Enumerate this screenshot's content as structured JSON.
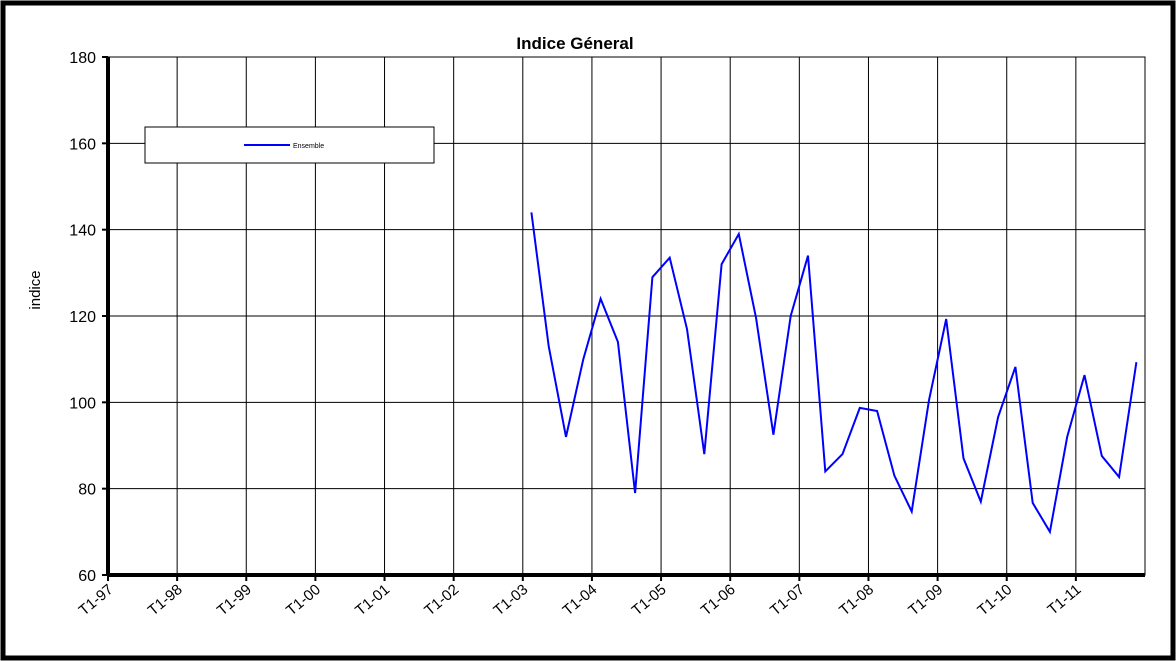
{
  "chart_data": {
    "type": "line",
    "title": "Indice Géneral",
    "y_label": "indice",
    "categories": [
      "T1-97",
      null,
      null,
      null,
      "T1-98",
      null,
      null,
      null,
      "T1-99",
      null,
      null,
      null,
      "T1-00",
      null,
      null,
      null,
      "T1-01",
      null,
      null,
      null,
      "T1-02",
      null,
      null,
      null,
      "T1-03",
      null,
      null,
      null,
      "T1-04",
      null,
      null,
      null,
      "T1-05",
      null,
      null,
      null,
      "T1-06",
      null,
      null,
      null,
      "T1-07",
      null,
      null,
      null,
      "T1-08",
      null,
      null,
      null,
      "T1-09",
      null,
      null,
      null,
      "T1-10",
      null,
      null,
      null,
      "T1-11",
      null,
      null,
      null
    ],
    "series": [
      {
        "name": "Ensemble",
        "color": "#0000ff",
        "values": [
          null,
          null,
          null,
          null,
          null,
          null,
          null,
          null,
          null,
          null,
          null,
          null,
          null,
          null,
          null,
          null,
          null,
          null,
          null,
          null,
          null,
          null,
          null,
          null,
          144,
          113,
          92,
          110,
          124,
          114,
          79,
          129,
          133.5,
          117,
          88,
          132,
          139,
          119.5,
          92.5,
          120,
          134,
          84,
          88,
          98.7,
          98,
          83,
          74.7,
          100.5,
          119.3,
          87,
          77,
          96.6,
          108.2,
          76.7,
          70,
          92,
          106.3,
          87.6,
          82.7,
          109.3
        ]
      }
    ],
    "ylim": [
      60,
      180
    ],
    "yticks": [
      60,
      80,
      100,
      120,
      140,
      160,
      180
    ],
    "grid": true,
    "legend": "top-left"
  }
}
